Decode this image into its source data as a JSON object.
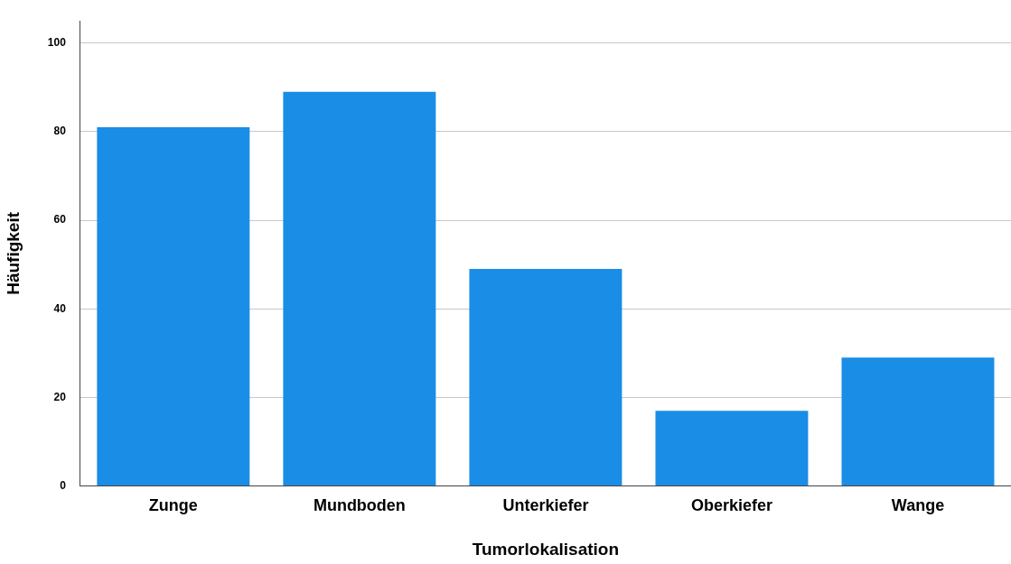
{
  "chart_data": {
    "type": "bar",
    "xlabel": "Tumorlokalisation",
    "ylabel": "Häufigkeit",
    "categories": [
      "Zunge",
      "Mundboden",
      "Unterkiefer",
      "Oberkiefer",
      "Wange"
    ],
    "values": [
      81,
      89,
      49,
      17,
      29
    ],
    "color": "#1a8de6",
    "ylim": [
      0,
      105
    ],
    "yticks": [
      0,
      20,
      40,
      60,
      80,
      100
    ],
    "grid": "y",
    "legend": false
  }
}
